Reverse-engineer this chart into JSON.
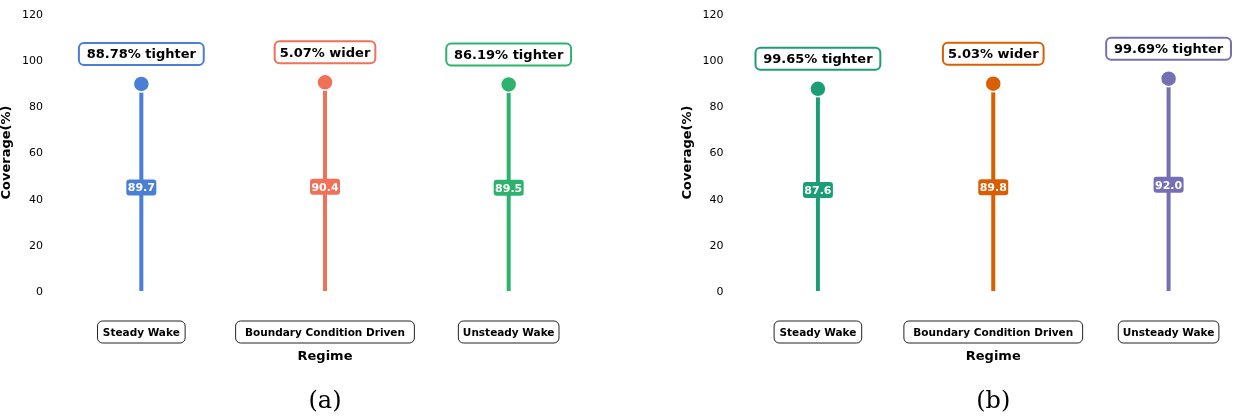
{
  "chart_data": [
    {
      "type": "lollipop",
      "xlabel": "Regime",
      "ylabel": "Coverage(%)",
      "categories": [
        "Steady Wake",
        "Boundary Condition Driven",
        "Unsteady Wake"
      ],
      "values": [
        89.7,
        90.4,
        89.5
      ],
      "colors": [
        "#4a7fd6",
        "#f07058",
        "#2eb36e"
      ],
      "ylim": [
        0,
        120
      ],
      "yticks": [
        0,
        20,
        40,
        60,
        80,
        100,
        120
      ],
      "grid": false,
      "marker": "circle",
      "annotations": [
        "88.78% tighter",
        "5.07% wider",
        "86.19% tighter",
        "(a)",
        {
          "text": "89.7",
          "x": "Steady Wake",
          "y": 44.85
        },
        {
          "text": "90.4",
          "x": "Boundary Condition Driven",
          "y": 45.2
        },
        {
          "text": "89.5",
          "x": "Unsteady Wake",
          "y": 44.75
        }
      ]
    },
    {
      "type": "lollipop",
      "xlabel": "Regime",
      "ylabel": "Coverage(%)",
      "categories": [
        "Steady Wake",
        "Boundary Condition Driven",
        "Unsteady Wake"
      ],
      "values": [
        87.6,
        89.8,
        92.0
      ],
      "colors": [
        "#1b9e77",
        "#d95f02",
        "#7570b3"
      ],
      "ylim": [
        0,
        120
      ],
      "yticks": [
        0,
        20,
        40,
        60,
        80,
        100,
        120
      ],
      "grid": false,
      "marker": "circle",
      "annotations": [
        "99.65% tighter",
        "5.03% wider",
        "99.69% tighter",
        "(b)",
        {
          "text": "87.6",
          "x": "Steady Wake",
          "y": 43.8
        },
        {
          "text": "89.8",
          "x": "Boundary Condition Driven",
          "y": 44.9
        },
        {
          "text": "92.0",
          "x": "Unsteady Wake",
          "y": 46
        }
      ]
    }
  ]
}
